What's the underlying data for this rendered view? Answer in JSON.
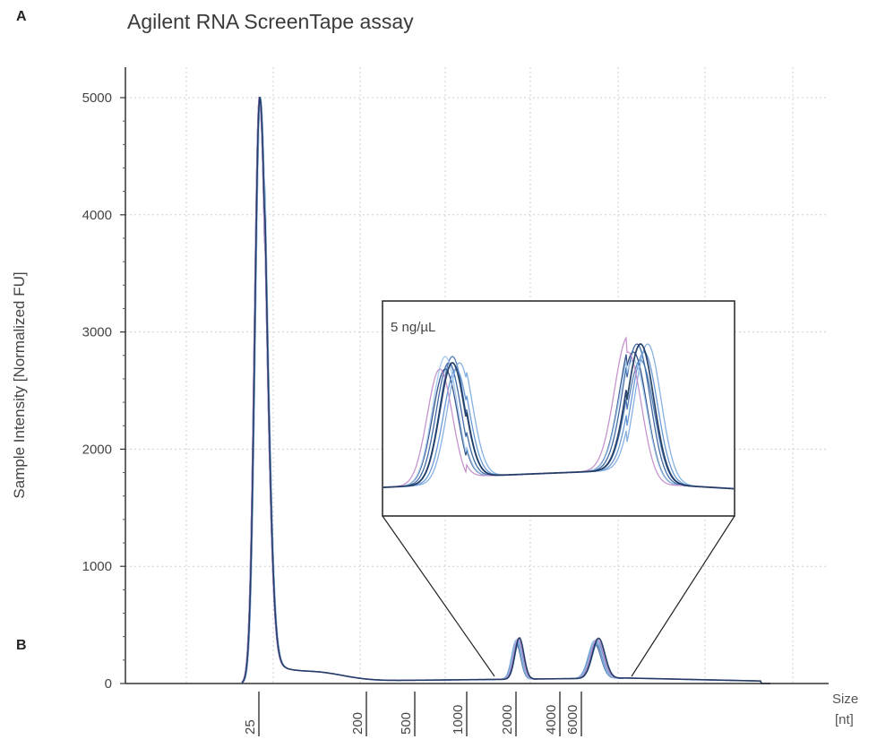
{
  "panel_labels": {
    "a": "A",
    "b": "B"
  },
  "chart_data": {
    "type": "line",
    "title": "Agilent RNA ScreenTape assay",
    "ylabel": "Sample Intensity [Normalized FU]",
    "xlabel": "Size",
    "xunit": "[nt]",
    "ylim": [
      0,
      5200
    ],
    "yticks": [
      0,
      1000,
      2000,
      3000,
      4000,
      5000
    ],
    "xticks": [
      "25",
      "200",
      "500",
      "1000",
      "2000",
      "4000",
      "6000"
    ],
    "grid": true,
    "x_scale": "electrophoretic size ladder (non-linear)",
    "peaks": [
      {
        "size_nt": "25",
        "intensity": 5000
      },
      {
        "size_nt": "~2000",
        "intensity": 330
      },
      {
        "size_nt": "~5000",
        "intensity": 380
      }
    ],
    "baseline": {
      "after_marker": 60,
      "mid_region": 80
    },
    "series_count": 8,
    "colors": [
      "#1f3f7a",
      "#2c5a9a",
      "#3f6fb0",
      "#5b8ed0",
      "#7aa9de",
      "#9cc3ea",
      "#c08ac9",
      "#16325c"
    ],
    "inset": {
      "label": "5 ng/µL",
      "zoom_region": "~1000 to ~6000 nt",
      "peak_heights": [
        310,
        370
      ]
    }
  }
}
